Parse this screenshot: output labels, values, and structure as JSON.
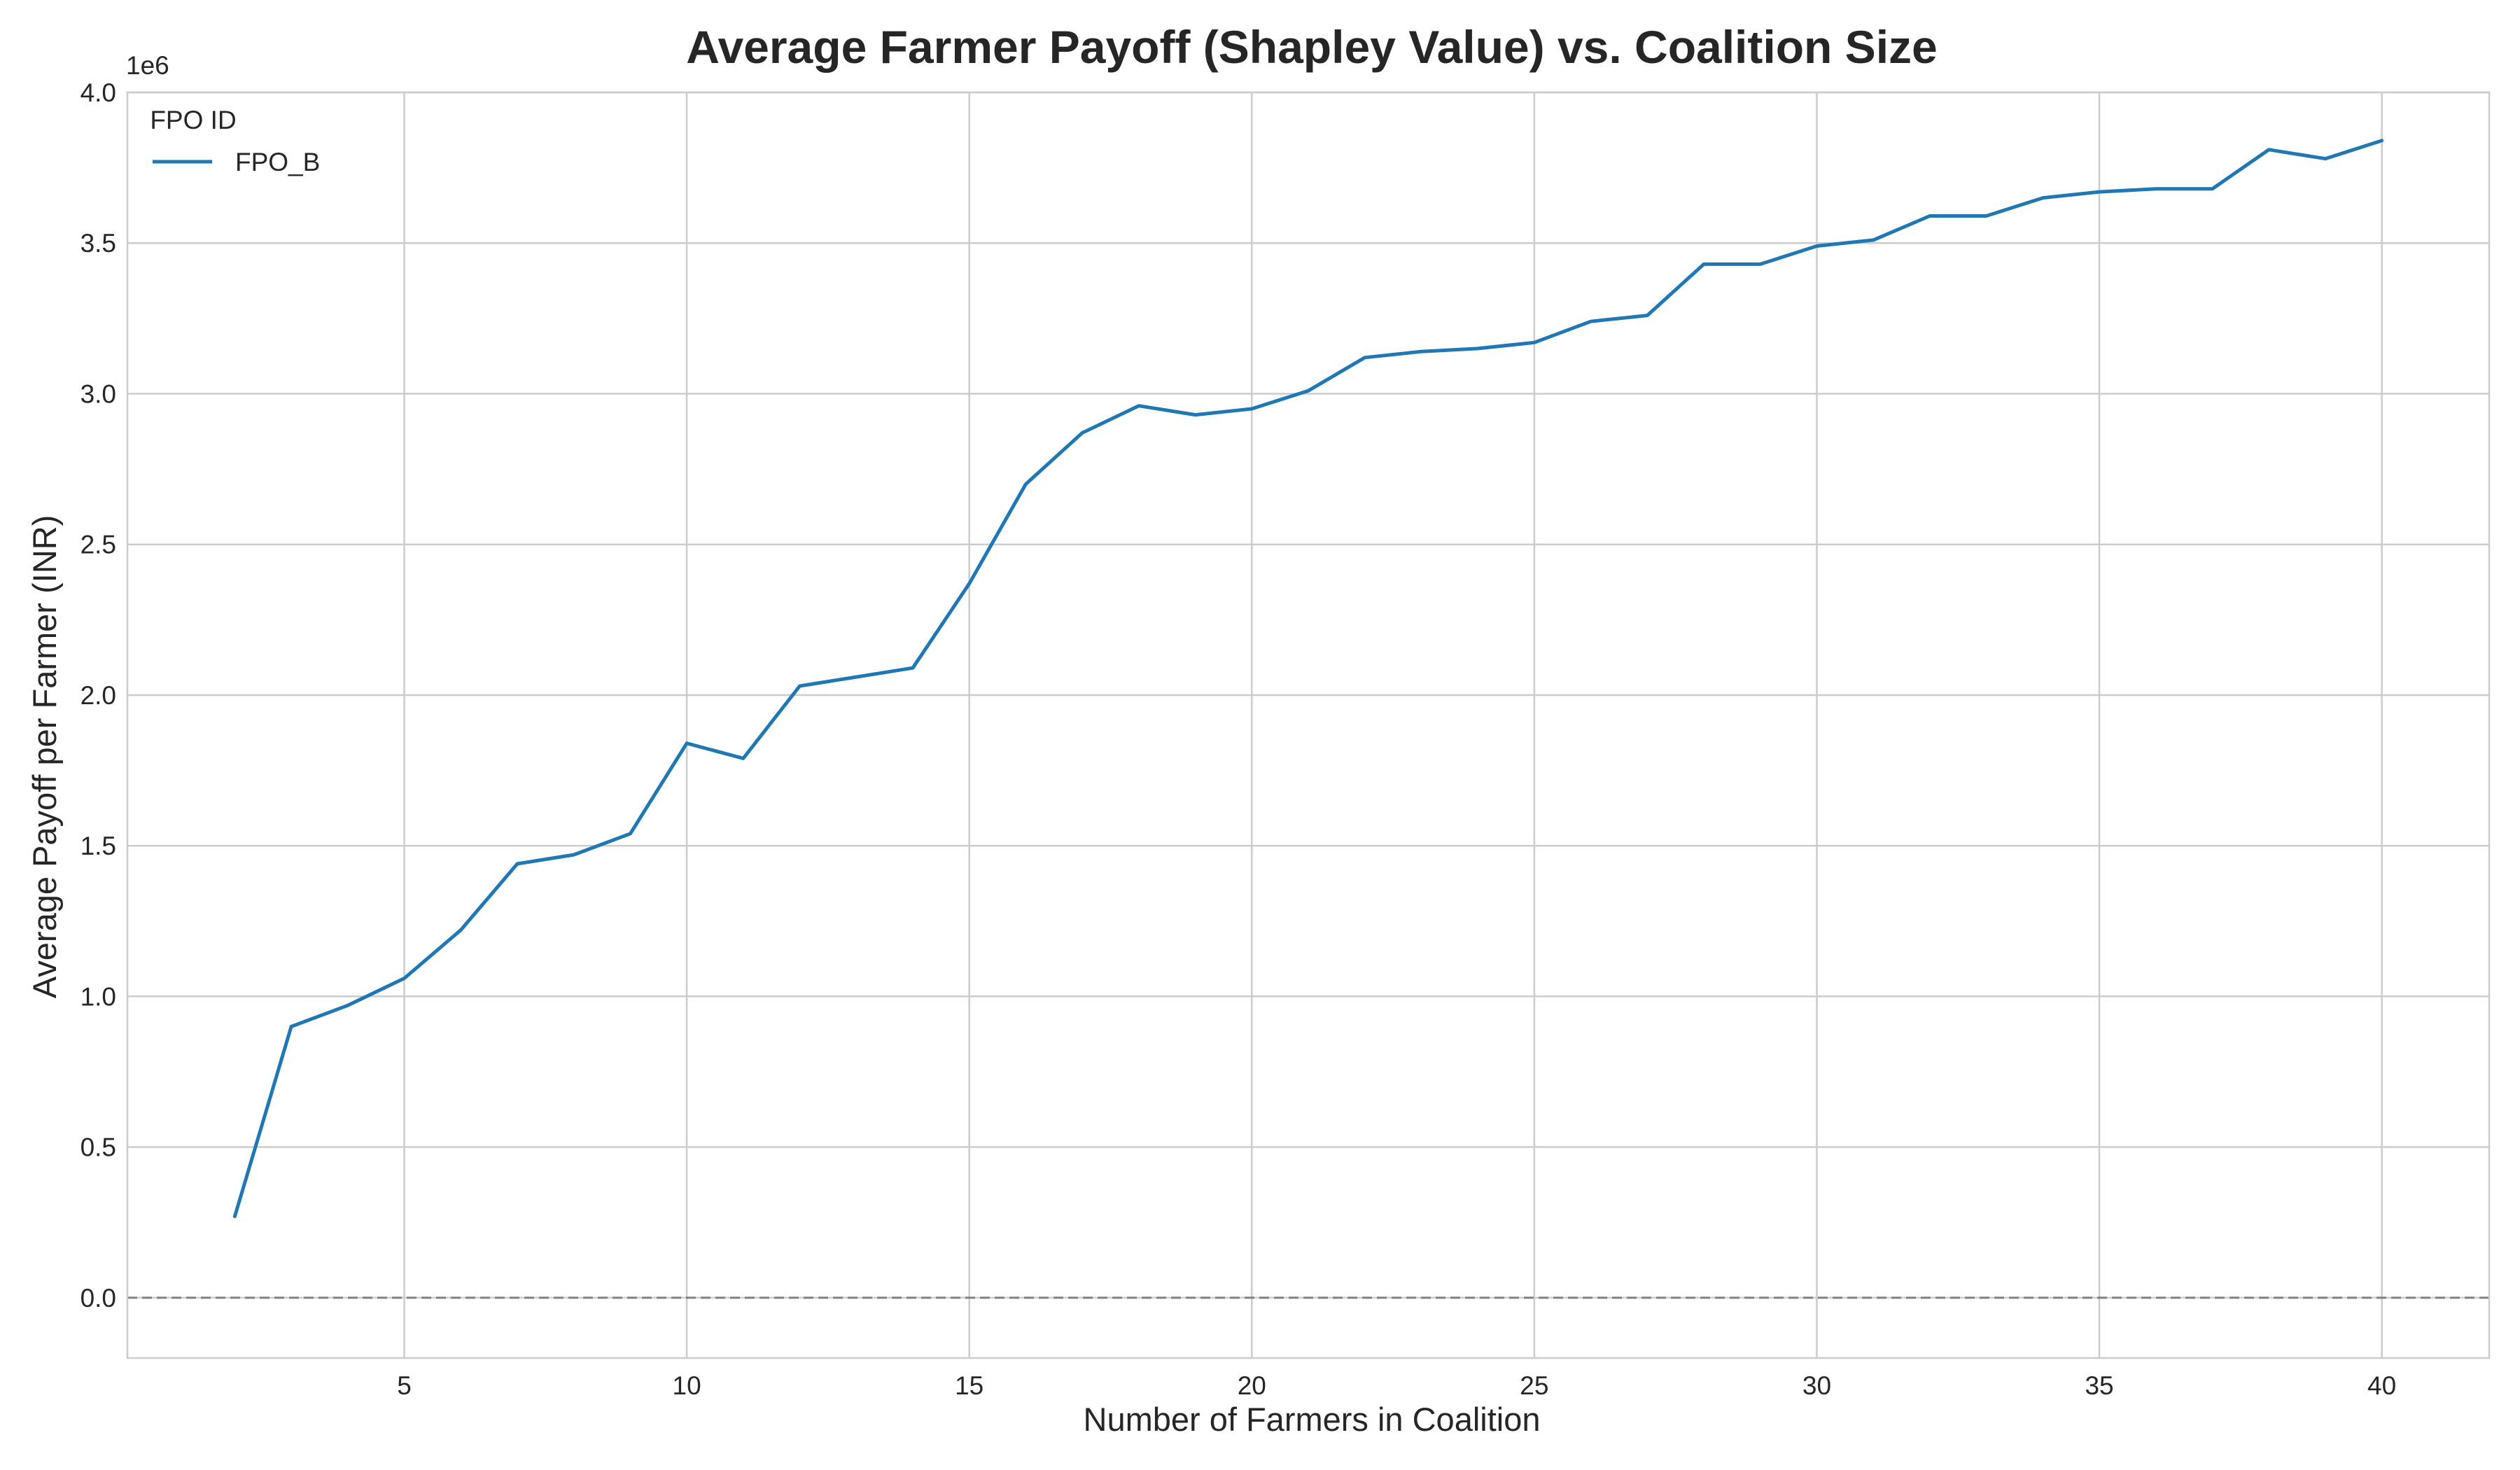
{
  "chart_data": {
    "type": "line",
    "title": "Average Farmer Payoff (Shapley Value) vs. Coalition Size",
    "xlabel": "Number of Farmers in Coalition",
    "ylabel": "Average Payoff per Farmer (INR)",
    "y_scale_label": "1e6",
    "xlim": [
      0.1,
      41.9
    ],
    "ylim": [
      -0.2,
      4.0
    ],
    "y_multiplier": 1000000,
    "x_ticks": [
      5,
      10,
      15,
      20,
      25,
      30,
      35,
      40
    ],
    "x_tick_labels": [
      "5",
      "10",
      "15",
      "20",
      "25",
      "30",
      "35",
      "40"
    ],
    "y_ticks": [
      0.0,
      0.5,
      1.0,
      1.5,
      2.0,
      2.5,
      3.0,
      3.5,
      4.0
    ],
    "y_tick_labels": [
      "0.0",
      "0.5",
      "1.0",
      "1.5",
      "2.0",
      "2.5",
      "3.0",
      "3.5",
      "4.0"
    ],
    "grid": true,
    "reference_line_y": 0,
    "legend": {
      "title": "FPO ID",
      "placement": "top-left"
    },
    "series": [
      {
        "name": "FPO_B",
        "color": "#1f77b4",
        "x": [
          2,
          3,
          4,
          5,
          6,
          7,
          8,
          9,
          10,
          11,
          12,
          13,
          14,
          15,
          16,
          17,
          18,
          19,
          20,
          21,
          22,
          23,
          24,
          25,
          26,
          27,
          28,
          29,
          30,
          31,
          32,
          33,
          34,
          35,
          36,
          37,
          38,
          39,
          40
        ],
        "y": [
          0.27,
          0.9,
          0.97,
          1.06,
          1.22,
          1.44,
          1.47,
          1.54,
          1.84,
          1.79,
          2.03,
          2.06,
          2.09,
          2.37,
          2.7,
          2.87,
          2.96,
          2.93,
          2.95,
          3.01,
          3.12,
          3.14,
          3.15,
          3.17,
          3.24,
          3.26,
          3.43,
          3.43,
          3.49,
          3.51,
          3.59,
          3.59,
          3.65,
          3.67,
          3.68,
          3.68,
          3.81,
          3.78,
          3.84
        ]
      }
    ]
  }
}
